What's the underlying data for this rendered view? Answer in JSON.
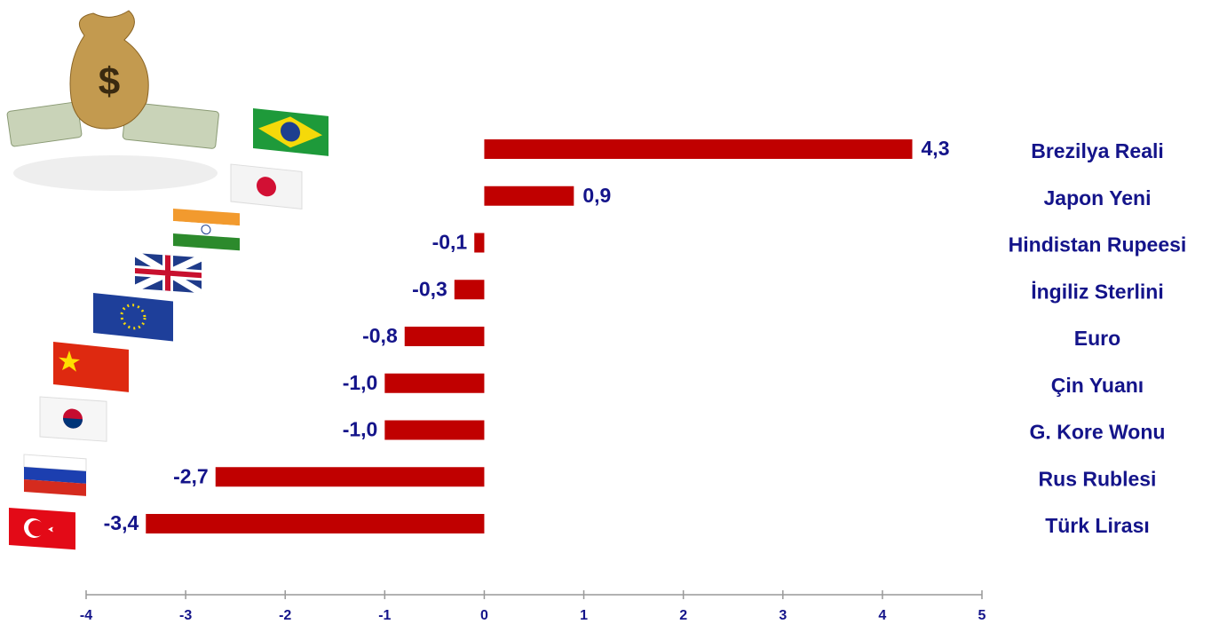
{
  "chart_data": {
    "type": "hbar",
    "categories": [
      "Brezilya Reali",
      "Japon Yeni",
      "Hindistan Rupeesi",
      "İngiliz Sterlini",
      "Euro",
      "Çin Yuanı",
      "G. Kore Wonu",
      "Rus Rublesi",
      "Türk Lirası"
    ],
    "values": [
      4.3,
      0.9,
      -0.1,
      -0.3,
      -0.8,
      -1.0,
      -1.0,
      -2.7,
      -3.4
    ],
    "value_labels": [
      "4,3",
      "0,9",
      "-0,1",
      "-0,3",
      "-0,8",
      "-1,0",
      "-1,0",
      "-2,7",
      "-3,4"
    ],
    "color": "#c00000",
    "xlim": [
      -4,
      5
    ],
    "xticks": [
      -4,
      -3,
      -2,
      -1,
      0,
      1,
      2,
      3,
      4,
      5
    ]
  }
}
